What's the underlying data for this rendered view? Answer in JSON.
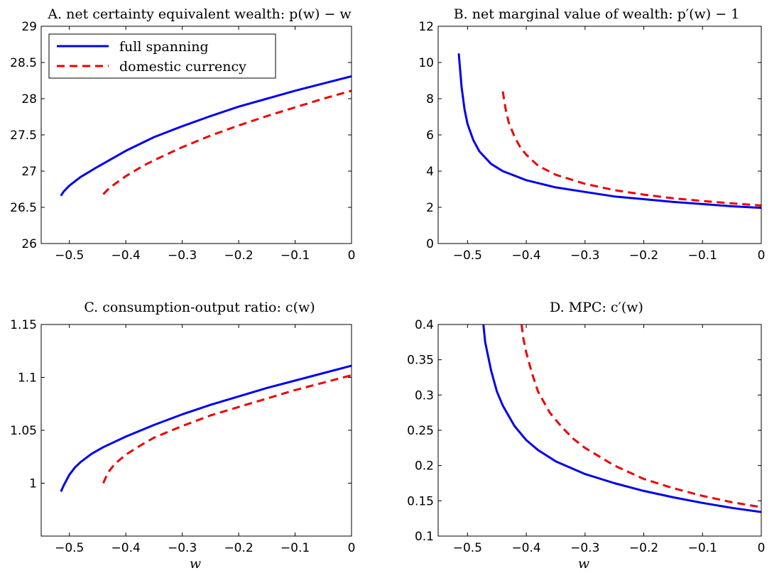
{
  "chart_data": [
    {
      "type": "line",
      "title": "A. net certainty equivalent wealth: p(w) − w",
      "xlabel": "",
      "ylabel": "",
      "xlim": [
        -0.55,
        0
      ],
      "ylim": [
        26,
        29
      ],
      "xticks": [
        -0.5,
        -0.4,
        -0.3,
        -0.2,
        -0.1,
        0
      ],
      "xtick_labels": [
        "−0.5",
        "−0.4",
        "−0.3",
        "−0.2",
        "−0.1",
        "0"
      ],
      "yticks": [
        26,
        26.5,
        27,
        27.5,
        28,
        28.5,
        29
      ],
      "ytick_labels": [
        "26",
        "26.5",
        "27",
        "27.5",
        "28",
        "28.5",
        "29"
      ],
      "grid": false,
      "legend": "top-left",
      "series": [
        {
          "name": "full spanning",
          "color": "#0000ee",
          "style": "solid",
          "x": [
            -0.515,
            -0.51,
            -0.5,
            -0.48,
            -0.45,
            -0.4,
            -0.35,
            -0.3,
            -0.25,
            -0.2,
            -0.15,
            -0.1,
            -0.05,
            0
          ],
          "y": [
            26.66,
            26.72,
            26.8,
            26.92,
            27.06,
            27.28,
            27.47,
            27.62,
            27.76,
            27.89,
            28.0,
            28.11,
            28.21,
            28.31
          ]
        },
        {
          "name": "domestic currency",
          "color": "#ee0000",
          "style": "dashed",
          "x": [
            -0.44,
            -0.43,
            -0.42,
            -0.4,
            -0.37,
            -0.35,
            -0.3,
            -0.25,
            -0.2,
            -0.15,
            -0.1,
            -0.05,
            0
          ],
          "y": [
            26.68,
            26.76,
            26.82,
            26.93,
            27.07,
            27.15,
            27.33,
            27.49,
            27.63,
            27.76,
            27.88,
            28.0,
            28.11
          ]
        }
      ]
    },
    {
      "type": "line",
      "title": "B. net marginal value of wealth: p′(w) − 1",
      "xlabel": "",
      "ylabel": "",
      "xlim": [
        -0.55,
        0
      ],
      "ylim": [
        0,
        12
      ],
      "xticks": [
        -0.5,
        -0.4,
        -0.3,
        -0.2,
        -0.1,
        0
      ],
      "xtick_labels": [
        "−0.5",
        "−0.4",
        "−0.3",
        "−0.2",
        "−0.1",
        "0"
      ],
      "yticks": [
        0,
        2,
        4,
        6,
        8,
        10,
        12
      ],
      "ytick_labels": [
        "0",
        "2",
        "4",
        "6",
        "8",
        "10",
        "12"
      ],
      "grid": false,
      "series": [
        {
          "name": "full spanning",
          "color": "#0000ee",
          "style": "solid",
          "x": [
            -0.515,
            -0.51,
            -0.505,
            -0.5,
            -0.49,
            -0.48,
            -0.46,
            -0.44,
            -0.4,
            -0.35,
            -0.3,
            -0.25,
            -0.2,
            -0.15,
            -0.1,
            -0.05,
            0
          ],
          "y": [
            10.5,
            8.6,
            7.4,
            6.6,
            5.7,
            5.1,
            4.4,
            4.0,
            3.5,
            3.1,
            2.85,
            2.6,
            2.45,
            2.3,
            2.18,
            2.06,
            1.97
          ]
        },
        {
          "name": "domestic currency",
          "color": "#ee0000",
          "style": "dashed",
          "x": [
            -0.44,
            -0.435,
            -0.43,
            -0.42,
            -0.41,
            -0.4,
            -0.38,
            -0.35,
            -0.3,
            -0.25,
            -0.2,
            -0.15,
            -0.1,
            -0.05,
            0
          ],
          "y": [
            8.4,
            7.4,
            6.7,
            5.9,
            5.3,
            4.9,
            4.3,
            3.8,
            3.3,
            2.95,
            2.7,
            2.5,
            2.35,
            2.22,
            2.1
          ]
        }
      ]
    },
    {
      "type": "line",
      "title": "C. consumption-output ratio: c(w)",
      "xlabel": "w",
      "ylabel": "",
      "xlim": [
        -0.55,
        0
      ],
      "ylim": [
        0.95,
        1.15
      ],
      "xticks": [
        -0.5,
        -0.4,
        -0.3,
        -0.2,
        -0.1,
        0
      ],
      "xtick_labels": [
        "−0.5",
        "−0.4",
        "−0.3",
        "−0.2",
        "−0.1",
        "0"
      ],
      "yticks": [
        1,
        1.05,
        1.1,
        1.15
      ],
      "ytick_labels": [
        "1",
        "1.05",
        "1.1",
        "1.15"
      ],
      "grid": false,
      "series": [
        {
          "name": "full spanning",
          "color": "#0000ee",
          "style": "solid",
          "x": [
            -0.515,
            -0.51,
            -0.5,
            -0.49,
            -0.48,
            -0.46,
            -0.44,
            -0.4,
            -0.35,
            -0.3,
            -0.25,
            -0.2,
            -0.15,
            -0.1,
            -0.05,
            0
          ],
          "y": [
            0.992,
            0.998,
            1.008,
            1.015,
            1.02,
            1.028,
            1.034,
            1.044,
            1.055,
            1.065,
            1.074,
            1.082,
            1.09,
            1.097,
            1.104,
            1.111
          ]
        },
        {
          "name": "domestic currency",
          "color": "#ee0000",
          "style": "dashed",
          "x": [
            -0.44,
            -0.435,
            -0.43,
            -0.42,
            -0.4,
            -0.37,
            -0.35,
            -0.3,
            -0.25,
            -0.2,
            -0.15,
            -0.1,
            -0.05,
            0
          ],
          "y": [
            1.0,
            1.006,
            1.011,
            1.018,
            1.027,
            1.037,
            1.043,
            1.054,
            1.064,
            1.072,
            1.08,
            1.088,
            1.095,
            1.102
          ]
        }
      ]
    },
    {
      "type": "line",
      "title": "D. MPC: c′(w)",
      "xlabel": "w",
      "ylabel": "",
      "xlim": [
        -0.55,
        0
      ],
      "ylim": [
        0.1,
        0.4
      ],
      "xticks": [
        -0.5,
        -0.4,
        -0.3,
        -0.2,
        -0.1,
        0
      ],
      "xtick_labels": [
        "−0.5",
        "−0.4",
        "−0.3",
        "−0.2",
        "−0.1",
        "0"
      ],
      "yticks": [
        0.1,
        0.15,
        0.2,
        0.25,
        0.3,
        0.35,
        0.4
      ],
      "ytick_labels": [
        "0.1",
        "0.15",
        "0.2",
        "0.25",
        "0.3",
        "0.35",
        "0.4"
      ],
      "grid": false,
      "series": [
        {
          "name": "full spanning",
          "color": "#0000ee",
          "style": "solid",
          "x": [
            -0.473,
            -0.47,
            -0.46,
            -0.45,
            -0.44,
            -0.42,
            -0.4,
            -0.38,
            -0.35,
            -0.3,
            -0.25,
            -0.2,
            -0.15,
            -0.1,
            -0.05,
            0
          ],
          "y": [
            0.4,
            0.375,
            0.335,
            0.305,
            0.285,
            0.256,
            0.236,
            0.222,
            0.206,
            0.188,
            0.175,
            0.164,
            0.155,
            0.147,
            0.14,
            0.134
          ]
        },
        {
          "name": "domestic currency",
          "color": "#ee0000",
          "style": "dashed",
          "x": [
            -0.408,
            -0.405,
            -0.4,
            -0.39,
            -0.38,
            -0.36,
            -0.34,
            -0.32,
            -0.3,
            -0.25,
            -0.2,
            -0.15,
            -0.1,
            -0.05,
            0
          ],
          "y": [
            0.4,
            0.38,
            0.36,
            0.33,
            0.305,
            0.275,
            0.255,
            0.238,
            0.225,
            0.2,
            0.181,
            0.168,
            0.157,
            0.148,
            0.141
          ]
        }
      ]
    }
  ]
}
